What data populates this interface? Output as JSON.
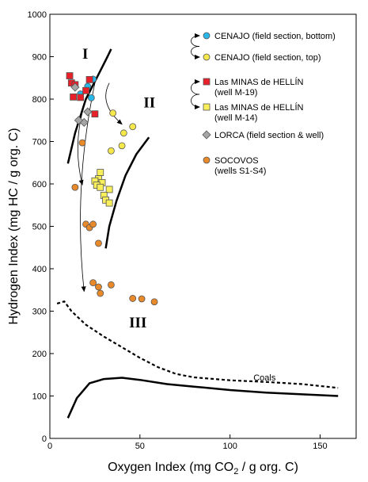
{
  "chart_data": {
    "type": "scatter",
    "title": "",
    "xlabel": "Oxygen Index (mg CO",
    "xlabel_sub": "2",
    "xlabel_tail": " / g org. C)",
    "ylabel": "Hydrogen Index (mg HC / g org. C)",
    "xlim": [
      0,
      170
    ],
    "ylim": [
      0,
      1000
    ],
    "x_ticks": [
      0,
      50,
      100,
      150
    ],
    "y_ticks": [
      0,
      100,
      200,
      300,
      400,
      500,
      600,
      700,
      800,
      900,
      1000
    ],
    "grid": false,
    "legend_position": "top-right",
    "series": [
      {
        "name": "CENAJO (field section, bottom)",
        "marker": "circle",
        "color": "#29b6e8",
        "points": [
          [
            17,
            812
          ],
          [
            21,
            830
          ],
          [
            24,
            847
          ],
          [
            23,
            803
          ]
        ]
      },
      {
        "name": "CENAJO (field section, top)",
        "marker": "circle",
        "color": "#f5e84a",
        "points": [
          [
            35,
            767
          ],
          [
            41,
            720
          ],
          [
            46,
            735
          ],
          [
            40,
            690
          ],
          [
            34,
            678
          ]
        ]
      },
      {
        "name": "Las MINAS de HELLÍN\n(well M-19)",
        "lines": [
          "Las MINAS de HELLÍN",
          "(well M-19)"
        ],
        "marker": "square",
        "color": "#e8202a",
        "points": [
          [
            11,
            855
          ],
          [
            12,
            838
          ],
          [
            14,
            834
          ],
          [
            13,
            805
          ],
          [
            17,
            804
          ],
          [
            22,
            846
          ],
          [
            20,
            820
          ],
          [
            25,
            765
          ]
        ]
      },
      {
        "name": "Las MINAS de HELLÍN\n(well M-14)",
        "lines": [
          "Las MINAS de HELLÍN",
          "(well M-14)"
        ],
        "marker": "square",
        "color": "#f8ef5a",
        "points": [
          [
            28,
            627
          ],
          [
            27,
            612
          ],
          [
            25,
            607
          ],
          [
            29,
            603
          ],
          [
            26,
            597
          ],
          [
            28,
            592
          ],
          [
            33,
            587
          ],
          [
            30,
            573
          ],
          [
            31,
            562
          ],
          [
            33,
            555
          ]
        ]
      },
      {
        "name": "LORCA (field section & well)",
        "marker": "diamond",
        "color": "#a6a6a6",
        "points": [
          [
            14,
            828
          ],
          [
            21,
            770
          ],
          [
            19,
            745
          ],
          [
            16,
            750
          ]
        ]
      },
      {
        "name": "SOCOVOS\n(wells S1-S4)",
        "lines": [
          "SOCOVOS",
          "(wells S1-S4)"
        ],
        "marker": "circle",
        "color": "#e8892a",
        "points": [
          [
            18,
            697
          ],
          [
            14,
            592
          ],
          [
            20,
            505
          ],
          [
            22,
            497
          ],
          [
            24,
            505
          ],
          [
            27,
            460
          ],
          [
            24,
            367
          ],
          [
            27,
            357
          ],
          [
            34,
            362
          ],
          [
            28,
            342
          ],
          [
            46,
            330
          ],
          [
            51,
            329
          ],
          [
            58,
            322
          ]
        ]
      }
    ],
    "type_labels": [
      {
        "text": "I",
        "x": 18,
        "y": 895
      },
      {
        "text": "II",
        "x": 52,
        "y": 780
      },
      {
        "text": "III",
        "x": 44,
        "y": 262
      }
    ],
    "curves": [
      {
        "name": "type-I",
        "style": "solid",
        "points": [
          [
            10,
            648
          ],
          [
            14,
            720
          ],
          [
            20,
            800
          ],
          [
            26,
            850
          ],
          [
            32,
            900
          ],
          [
            34,
            918
          ]
        ]
      },
      {
        "name": "type-II",
        "style": "solid",
        "points": [
          [
            31,
            448
          ],
          [
            33,
            500
          ],
          [
            37,
            560
          ],
          [
            42,
            620
          ],
          [
            48,
            670
          ],
          [
            55,
            710
          ]
        ]
      },
      {
        "name": "type-III",
        "style": "solid",
        "points": [
          [
            10,
            48
          ],
          [
            15,
            95
          ],
          [
            22,
            130
          ],
          [
            30,
            140
          ],
          [
            40,
            143
          ],
          [
            50,
            138
          ],
          [
            65,
            128
          ],
          [
            80,
            122
          ],
          [
            100,
            114
          ],
          [
            120,
            108
          ],
          [
            140,
            104
          ],
          [
            160,
            100
          ]
        ]
      },
      {
        "name": "coals",
        "label": "Coals",
        "style": "dashed",
        "points": [
          [
            4,
            318
          ],
          [
            8,
            323
          ],
          [
            12,
            300
          ],
          [
            20,
            268
          ],
          [
            30,
            240
          ],
          [
            40,
            215
          ],
          [
            50,
            190
          ],
          [
            60,
            168
          ],
          [
            70,
            152
          ],
          [
            80,
            144
          ],
          [
            100,
            137
          ],
          [
            120,
            133
          ],
          [
            140,
            128
          ],
          [
            160,
            119
          ]
        ]
      }
    ],
    "annotations": [
      {
        "text": "Coals",
        "x": 113,
        "y": 136
      }
    ],
    "arrows": [
      {
        "from": [
          21,
          810
        ],
        "to": [
          18,
          598
        ]
      },
      {
        "from": [
          25,
          838
        ],
        "to": [
          19,
          347
        ]
      },
      {
        "from": [
          33,
          838
        ],
        "to": [
          40,
          741
        ]
      }
    ]
  }
}
